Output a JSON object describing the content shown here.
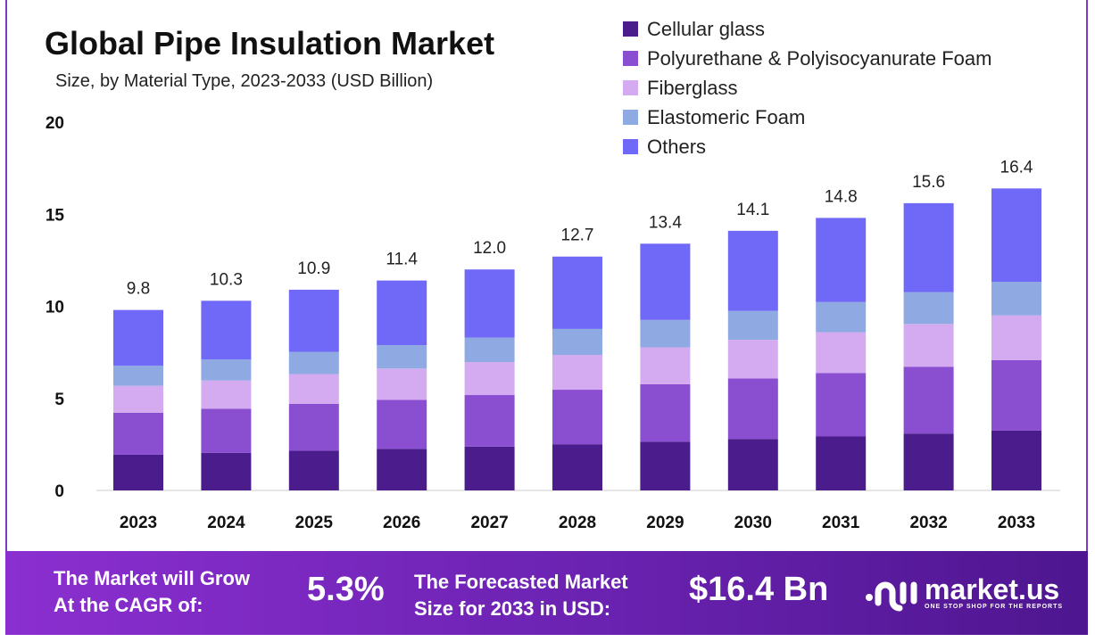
{
  "chart_data": {
    "type": "bar",
    "stacked": true,
    "title": "Global Pipe Insulation Market",
    "subtitle": "Size, by Material Type, 2023-2033 (USD Billion)",
    "categories": [
      "2023",
      "2024",
      "2025",
      "2026",
      "2027",
      "2028",
      "2029",
      "2030",
      "2031",
      "2032",
      "2033"
    ],
    "totals": [
      9.8,
      10.3,
      10.9,
      11.4,
      12.0,
      12.7,
      13.4,
      14.1,
      14.8,
      15.6,
      16.4
    ],
    "total_labels": [
      "9.8",
      "10.3",
      "10.9",
      "11.4",
      "12.0",
      "12.7",
      "13.4",
      "14.1",
      "14.8",
      "15.6",
      "16.4"
    ],
    "series": [
      {
        "name": "Cellular glass",
        "color": "#4b1c8c",
        "values": [
          1.94,
          2.04,
          2.16,
          2.26,
          2.38,
          2.51,
          2.65,
          2.79,
          2.93,
          3.09,
          3.25
        ]
      },
      {
        "name": "Polyurethane & Polyisocyanurate Foam",
        "color": "#8a4fd0",
        "values": [
          2.28,
          2.4,
          2.54,
          2.66,
          2.8,
          2.96,
          3.12,
          3.29,
          3.45,
          3.63,
          3.82
        ]
      },
      {
        "name": "Fiberglass",
        "color": "#d4aaf0",
        "values": [
          1.46,
          1.53,
          1.62,
          1.7,
          1.79,
          1.89,
          2.0,
          2.1,
          2.21,
          2.32,
          2.44
        ]
      },
      {
        "name": "Elastomeric Foam",
        "color": "#8fa9e2",
        "values": [
          1.09,
          1.14,
          1.21,
          1.27,
          1.33,
          1.41,
          1.49,
          1.57,
          1.64,
          1.73,
          1.82
        ]
      },
      {
        "name": "Others",
        "color": "#7068f6",
        "values": [
          3.03,
          3.19,
          3.37,
          3.51,
          3.7,
          3.93,
          4.14,
          4.35,
          4.57,
          4.83,
          5.07
        ]
      }
    ],
    "ylim": [
      0,
      20
    ],
    "yticks": [
      "0",
      "5",
      "10",
      "15",
      "20"
    ],
    "grid": false,
    "legend": "top-right"
  },
  "footer": {
    "cagr_label_1": "The Market will Grow",
    "cagr_label_2": "At the CAGR of:",
    "cagr_value": "5.3%",
    "forecast_label_1": "The Forecasted Market",
    "forecast_label_2": "Size for 2033 in USD:",
    "forecast_value": "$16.4 Bn",
    "logo_text": "market.us",
    "logo_tagline": "ONE STOP SHOP FOR THE REPORTS"
  }
}
